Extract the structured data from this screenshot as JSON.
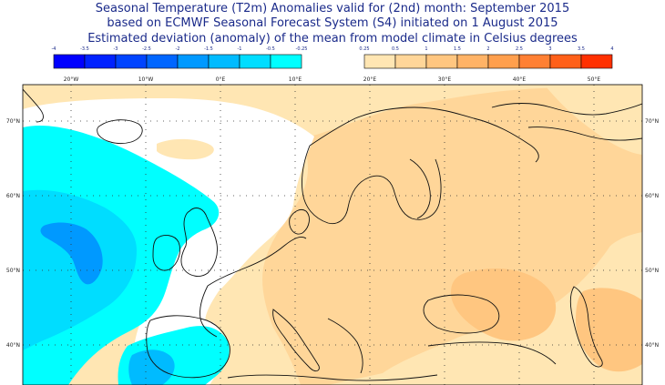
{
  "title": {
    "line1": "Seasonal Temperature (T2m) Anomalies valid for (2nd) month: September 2015",
    "line2": "based on ECMWF Seasonal Forecast System (S4) initiated on 1 August 2015",
    "line3": "Estimated deviation (anomaly) of the mean from model climate in Celsius degrees"
  },
  "legend": {
    "cold": {
      "ticks": [
        "-4",
        "-3.5",
        "-3",
        "-2.5",
        "-2",
        "-1.5",
        "-1",
        "-0.5",
        "-0.25"
      ],
      "colors": [
        "#0000ff",
        "#0022ff",
        "#0044ff",
        "#0066ff",
        "#0099ff",
        "#00bbff",
        "#00ddff",
        "#00ffff"
      ]
    },
    "warm": {
      "ticks": [
        "0.25",
        "0.5",
        "1",
        "1.5",
        "2",
        "2.5",
        "3",
        "3.5",
        "4"
      ],
      "colors": [
        "#ffe6b3",
        "#ffd699",
        "#ffc680",
        "#ffb366",
        "#ff9f4d",
        "#ff8033",
        "#ff6019",
        "#ff3000"
      ]
    }
  },
  "map": {
    "lon_labels": [
      "20°W",
      "10°W",
      "0°E",
      "10°E",
      "20°E",
      "30°E",
      "40°E",
      "50°E"
    ],
    "lat_labels": [
      "70°N",
      "60°N",
      "50°N",
      "40°N"
    ],
    "colors": {
      "neutral": "#ffffff",
      "warm1": "#ffe6b3",
      "warm2": "#ffd699",
      "warm3": "#ffc680",
      "cold1": "#00ffff",
      "cold2": "#00ddff",
      "cold3": "#00bbff",
      "cold4": "#0099ff",
      "coast": "#111111",
      "grid": "#333333"
    }
  }
}
